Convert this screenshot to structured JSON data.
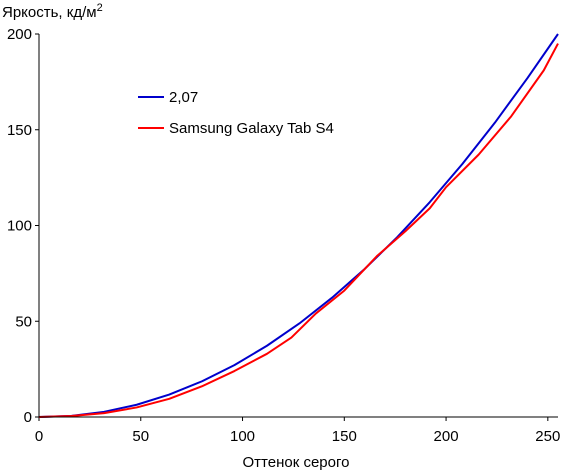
{
  "chart_data": {
    "type": "line",
    "title": "",
    "xlabel": "Оттенок серого",
    "ylabel": "Яркость, кд/м",
    "ylabel_superscript": "2",
    "xlim": [
      0,
      255
    ],
    "ylim": [
      0,
      200
    ],
    "xticks": [
      0,
      50,
      100,
      150,
      200,
      250
    ],
    "xtick_labels": [
      "0",
      "50",
      "100",
      "150",
      "200",
      "250"
    ],
    "yticks": [
      0,
      50,
      100,
      150,
      200
    ],
    "ytick_labels": [
      "0",
      "50",
      "100",
      "150",
      "200"
    ],
    "grid": false,
    "legend_position": "upper-left",
    "series": [
      {
        "name": "2,07",
        "color": "#0000cc",
        "x": [
          0,
          16,
          32,
          48,
          64,
          80,
          96,
          112,
          128,
          144,
          160,
          176,
          192,
          208,
          224,
          240,
          255
        ],
        "y": [
          0,
          0.6,
          2.7,
          6.4,
          11.7,
          18.6,
          27.1,
          37.2,
          48.9,
          62.3,
          77.3,
          93.9,
          112.2,
          132.1,
          153.7,
          177.0,
          200.0
        ]
      },
      {
        "name": "Samsung Galaxy Tab S4",
        "color": "#ff0000",
        "x": [
          0,
          16,
          32,
          48,
          64,
          80,
          96,
          112,
          124,
          136,
          150,
          166,
          180,
          192,
          200,
          216,
          232,
          248,
          255
        ],
        "y": [
          0,
          0.5,
          2.0,
          5.0,
          9.5,
          16.0,
          24.0,
          33.0,
          41.5,
          54.0,
          66.0,
          84.0,
          97.0,
          109.0,
          120.0,
          137.0,
          157.0,
          181.0,
          195.0
        ]
      }
    ]
  }
}
